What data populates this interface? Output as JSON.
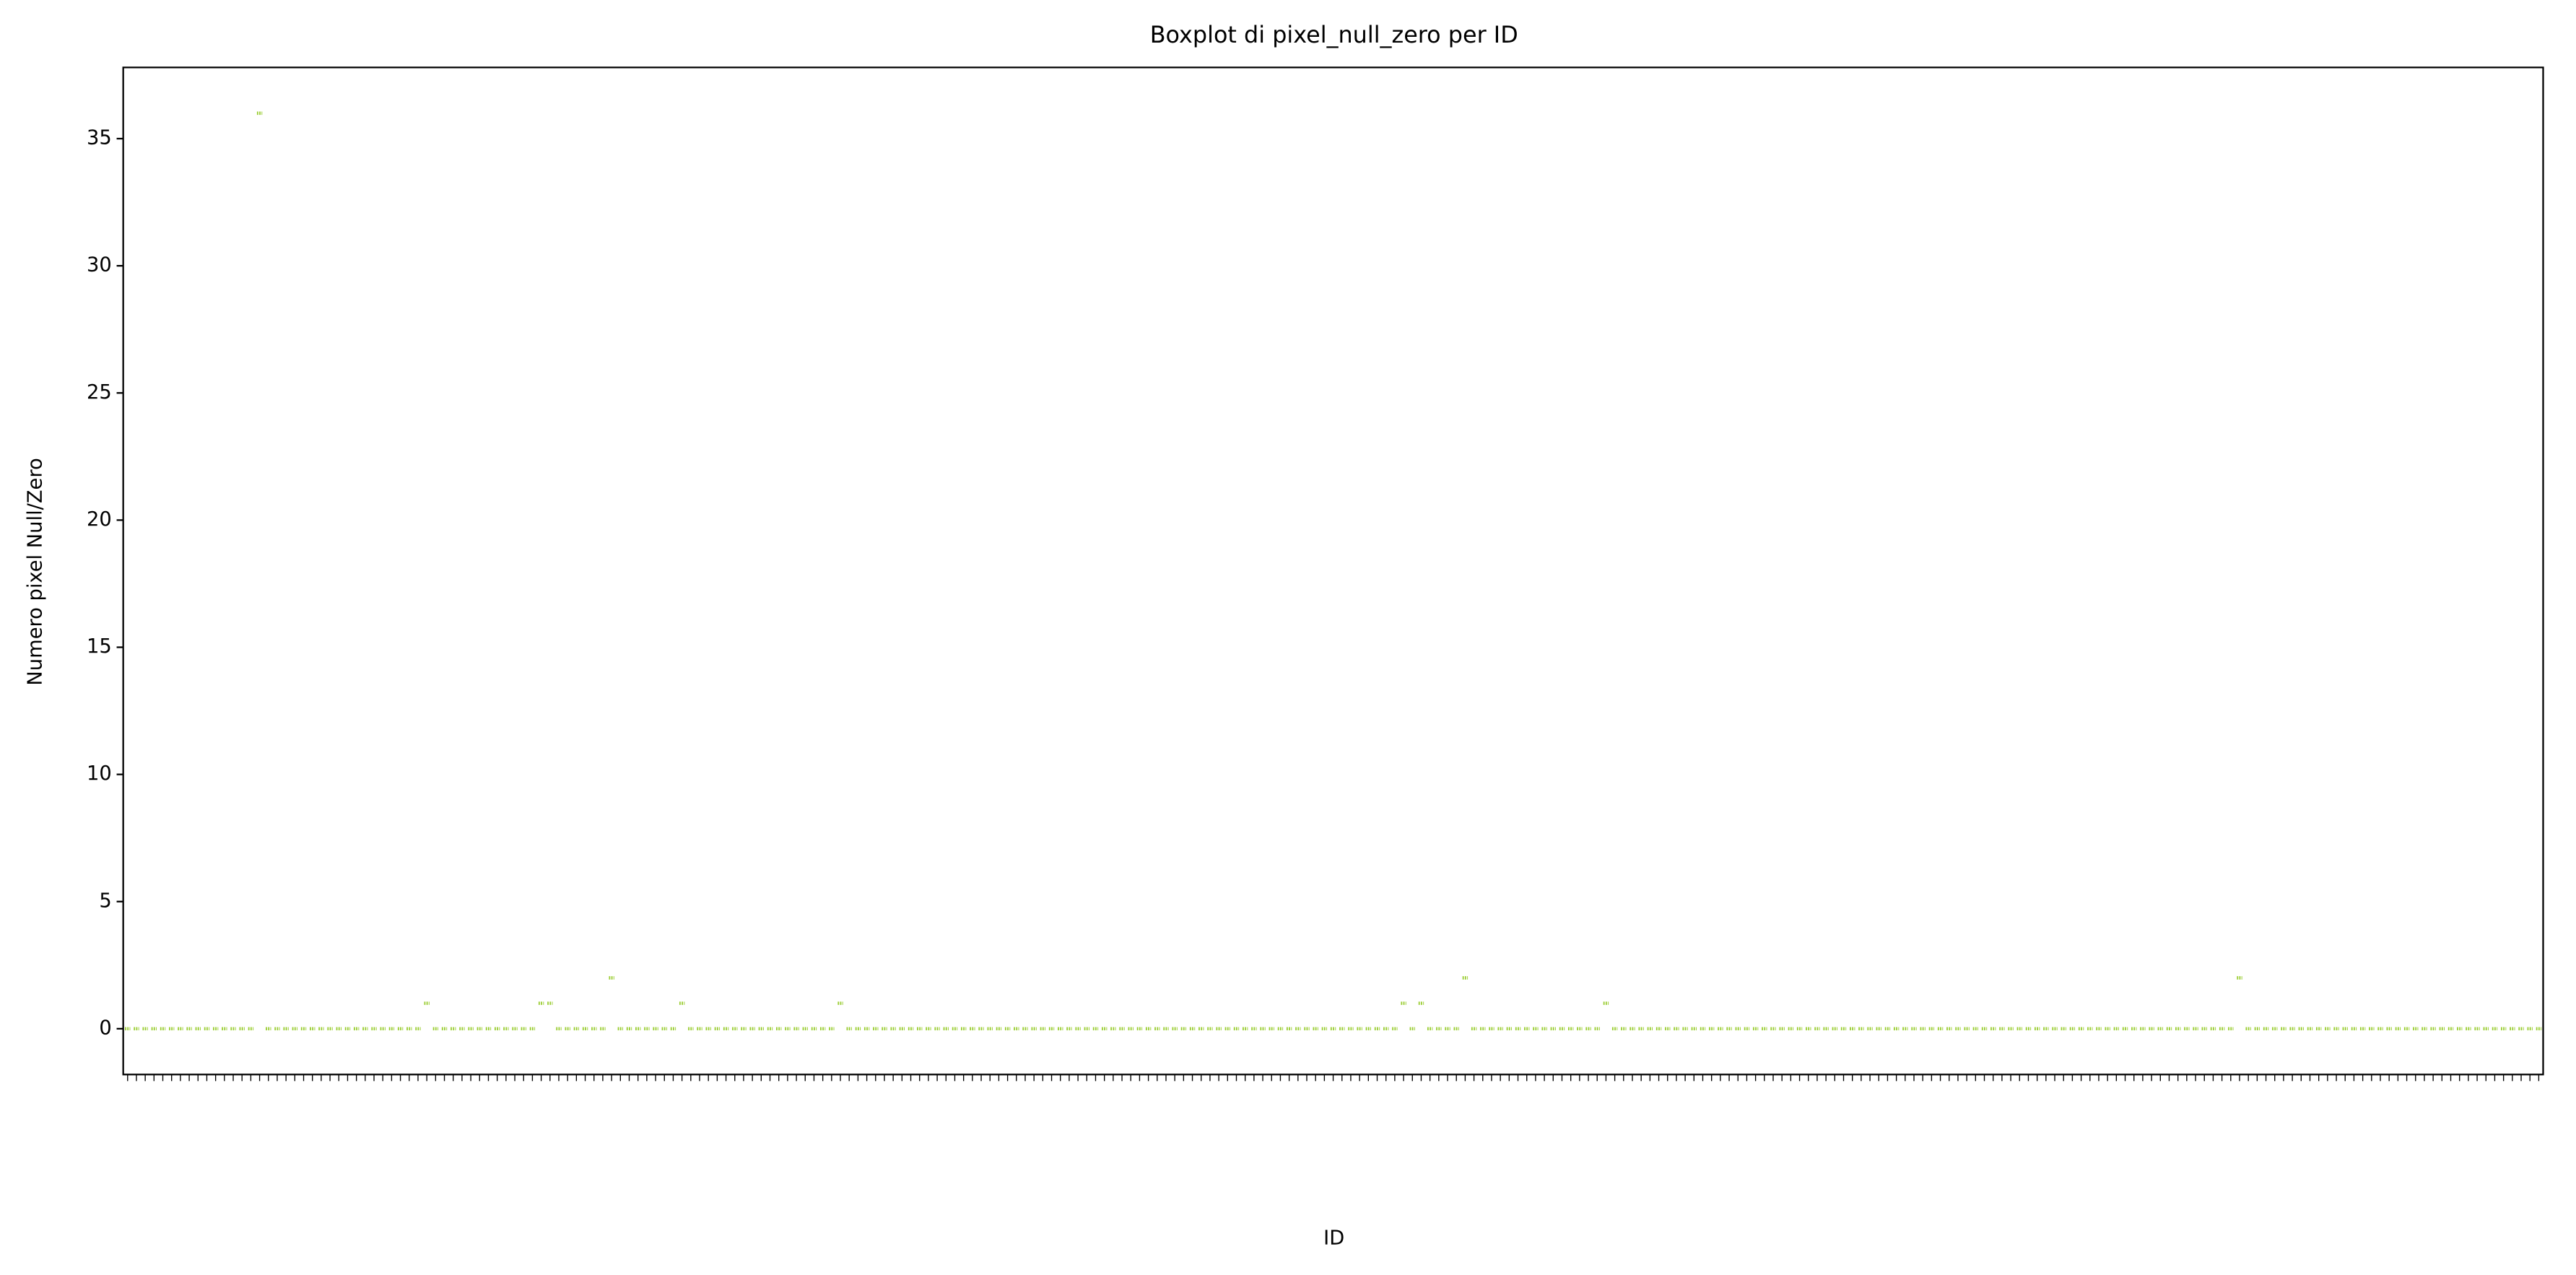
{
  "chart_data": {
    "type": "box",
    "title": "Boxplot di pixel_null_zero per ID",
    "x_label": "ID",
    "y_label": "Numero pixel Null/Zero",
    "color": "#9acd32",
    "categories": [
      null,
      null,
      null,
      null,
      null,
      null,
      null,
      null,
      null,
      null,
      null,
      null,
      null,
      null,
      null,
      null,
      null,
      null,
      null,
      null,
      null,
      null,
      null,
      null,
      null,
      null,
      null,
      null,
      null,
      null,
      null,
      null,
      null,
      null,
      null,
      null,
      null,
      null,
      null,
      null,
      null,
      null,
      null,
      null,
      null,
      null,
      null,
      null,
      null,
      null,
      null,
      null,
      null,
      null,
      null,
      null,
      null,
      null,
      null,
      null,
      null,
      null,
      null,
      null,
      null,
      null,
      null,
      null,
      null,
      null,
      null,
      null,
      null,
      null,
      null,
      null,
      null,
      null,
      null,
      null,
      null,
      null,
      null,
      null,
      null,
      null,
      null,
      null,
      null,
      null,
      null,
      null,
      null,
      null,
      null,
      null,
      null,
      null,
      null,
      null,
      null,
      null,
      null,
      null,
      null,
      null,
      null,
      null,
      null,
      null,
      null,
      null,
      null,
      null,
      null,
      null,
      null,
      null,
      null,
      null,
      null,
      null,
      null,
      null,
      null,
      null,
      null,
      null,
      null,
      null,
      null,
      null,
      null,
      null,
      null,
      null,
      null,
      null,
      null,
      null,
      null,
      null,
      null,
      null,
      null,
      null,
      null,
      null,
      null,
      null,
      null,
      null,
      null,
      null,
      null,
      null,
      null,
      null,
      null,
      null,
      null,
      null,
      null,
      null,
      null,
      null,
      null,
      null,
      null,
      null,
      null,
      null,
      null,
      null,
      null,
      null,
      null,
      null,
      null,
      null,
      null,
      null,
      null,
      null,
      null,
      null,
      null,
      null,
      null,
      null,
      null,
      null,
      null,
      null,
      null,
      null,
      null,
      null,
      null,
      null,
      null,
      null,
      null,
      null,
      null,
      null,
      null,
      null,
      null,
      null,
      null,
      null,
      null,
      null,
      null,
      null,
      null,
      null,
      null,
      null,
      null,
      null,
      null,
      null,
      null,
      null,
      null,
      null,
      null,
      null,
      null,
      null,
      null,
      null,
      null,
      null,
      null,
      null,
      null,
      null,
      null,
      null,
      null,
      null,
      null,
      null,
      null,
      null,
      null,
      null,
      null,
      null,
      null,
      null,
      null,
      null,
      null,
      null,
      null,
      null,
      null,
      null,
      null,
      null,
      null,
      null,
      null,
      null,
      null,
      null,
      null,
      null,
      null,
      null,
      null
    ],
    "values": [
      0,
      0,
      0,
      0,
      0,
      0,
      0,
      0,
      0,
      0,
      0,
      0,
      0,
      0,
      0,
      36,
      0,
      0,
      0,
      0,
      0,
      0,
      0,
      0,
      0,
      0,
      0,
      0,
      0,
      0,
      0,
      0,
      0,
      0,
      1,
      0,
      0,
      0,
      0,
      0,
      0,
      0,
      0,
      0,
      0,
      0,
      0,
      1,
      1,
      0,
      0,
      0,
      0,
      0,
      0,
      2,
      0,
      0,
      0,
      0,
      0,
      0,
      0,
      1,
      0,
      0,
      0,
      0,
      0,
      0,
      0,
      0,
      0,
      0,
      0,
      0,
      0,
      0,
      0,
      0,
      0,
      1,
      0,
      0,
      0,
      0,
      0,
      0,
      0,
      0,
      0,
      0,
      0,
      0,
      0,
      0,
      0,
      0,
      0,
      0,
      0,
      0,
      0,
      0,
      0,
      0,
      0,
      0,
      0,
      0,
      0,
      0,
      0,
      0,
      0,
      0,
      0,
      0,
      0,
      0,
      0,
      0,
      0,
      0,
      0,
      0,
      0,
      0,
      0,
      0,
      0,
      0,
      0,
      0,
      0,
      0,
      0,
      0,
      0,
      0,
      0,
      0,
      0,
      0,
      0,
      1,
      0,
      1,
      0,
      0,
      0,
      0,
      2,
      0,
      0,
      0,
      0,
      0,
      0,
      0,
      0,
      0,
      0,
      0,
      0,
      0,
      0,
      0,
      1,
      0,
      0,
      0,
      0,
      0,
      0,
      0,
      0,
      0,
      0,
      0,
      0,
      0,
      0,
      0,
      0,
      0,
      0,
      0,
      0,
      0,
      0,
      0,
      0,
      0,
      0,
      0,
      0,
      0,
      0,
      0,
      0,
      0,
      0,
      0,
      0,
      0,
      0,
      0,
      0,
      0,
      0,
      0,
      0,
      0,
      0,
      0,
      0,
      0,
      0,
      0,
      0,
      0,
      0,
      0,
      0,
      0,
      0,
      0,
      0,
      0,
      0,
      0,
      0,
      0,
      0,
      0,
      0,
      0,
      0,
      0,
      2,
      0,
      0,
      0,
      0,
      0,
      0,
      0,
      0,
      0,
      0,
      0,
      0,
      0,
      0,
      0,
      0,
      0,
      0,
      0,
      0,
      0,
      0,
      0,
      0,
      0,
      0,
      0,
      0,
      0,
      0,
      0,
      0,
      0,
      0
    ],
    "ylim": [
      -1.8,
      37.8
    ],
    "yticks": [
      0,
      5,
      10,
      15,
      20,
      25,
      30,
      35
    ]
  }
}
